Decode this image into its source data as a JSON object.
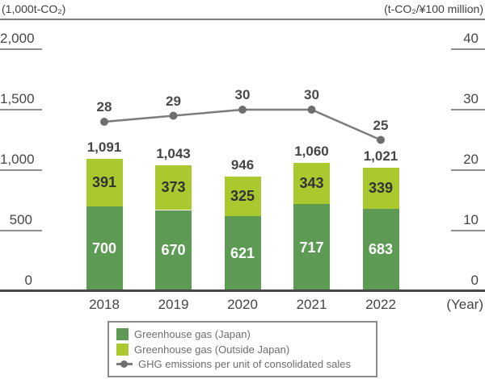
{
  "chart_data": {
    "type": "bar",
    "subtype": "stacked-bars-with-line-overlay",
    "categories": [
      "2018",
      "2019",
      "2020",
      "2021",
      "2022"
    ],
    "series": [
      {
        "name": "Greenhouse gas (Japan)",
        "type": "bar",
        "axis": "left",
        "values": [
          700,
          670,
          621,
          717,
          683
        ],
        "color": "#5d9b55",
        "label_color": "#ffffff"
      },
      {
        "name": "Greenhouse gas (Outside Japan)",
        "type": "bar",
        "axis": "left",
        "values": [
          391,
          373,
          325,
          343,
          339
        ],
        "color": "#a9c92e",
        "label_color": "#333333"
      },
      {
        "name": "GHG emissions per unit of consolidated sales",
        "type": "line",
        "axis": "right",
        "values": [
          28,
          29,
          30,
          30,
          25
        ],
        "color": "#7c7c7c",
        "marker_color": "#6e6e6e"
      }
    ],
    "stack_totals": [
      "1,091",
      "1,043",
      "946",
      "1,060",
      "1,021"
    ],
    "left_axis": {
      "unit": "(1,000t-CO₂)",
      "range": [
        0,
        2000
      ],
      "tick_values": [
        0,
        500,
        1000,
        1500,
        2000
      ],
      "tick_labels": [
        "0",
        "500",
        "1,000",
        "1,500",
        "2,000"
      ]
    },
    "right_axis": {
      "unit": "(t-CO₂/¥100 million)",
      "range": [
        0,
        40
      ],
      "tick_values": [
        0,
        10,
        20,
        30,
        40
      ],
      "tick_labels": [
        "0",
        "10",
        "20",
        "30",
        "40"
      ]
    },
    "x_axis_label": "(Year)",
    "grid": false,
    "legend_position": "bottom"
  },
  "legend": {
    "items": [
      {
        "label": "Greenhouse gas (Japan)",
        "swatch": "square",
        "color": "#5d9b55"
      },
      {
        "label": "Greenhouse gas (Outside Japan)",
        "swatch": "square",
        "color": "#a9c92e"
      },
      {
        "label": "GHG emissions per unit of consolidated sales",
        "swatch": "line-marker",
        "color": "#7c7c7c"
      }
    ]
  }
}
